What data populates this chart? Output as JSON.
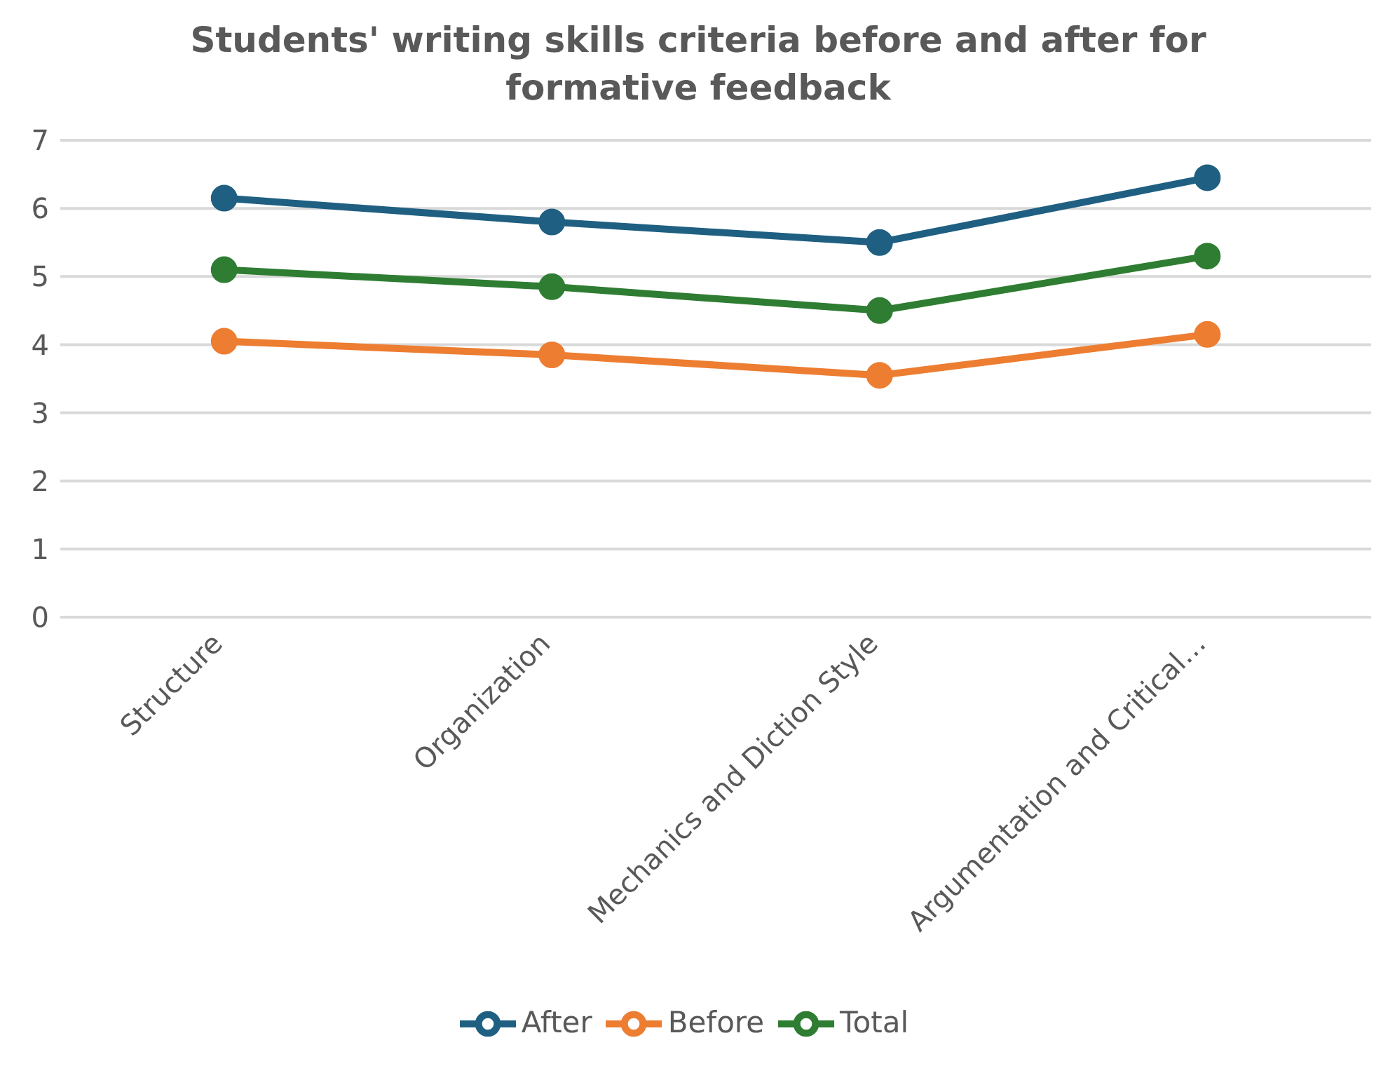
{
  "chart_data": {
    "type": "line",
    "title": "Students' writing skills criteria before and after for formative feedback",
    "categories": [
      "Structure",
      "Organization",
      "Mechanics and Diction Style",
      "Argumentation and Critical…"
    ],
    "series": [
      {
        "name": "After",
        "color": "#1f5f82",
        "values": [
          6.15,
          5.8,
          5.5,
          6.45
        ]
      },
      {
        "name": "Before",
        "color": "#ed7d31",
        "values": [
          4.05,
          3.85,
          3.55,
          4.15
        ]
      },
      {
        "name": "Total",
        "color": "#2e7d32",
        "values": [
          5.1,
          4.85,
          4.5,
          5.3
        ]
      }
    ],
    "ylim": [
      0,
      7
    ],
    "yticks": [
      0,
      1,
      2,
      3,
      4,
      5,
      6,
      7
    ],
    "grid": "y",
    "legend": "bottom",
    "marker": "circle",
    "line_style": "solid"
  }
}
